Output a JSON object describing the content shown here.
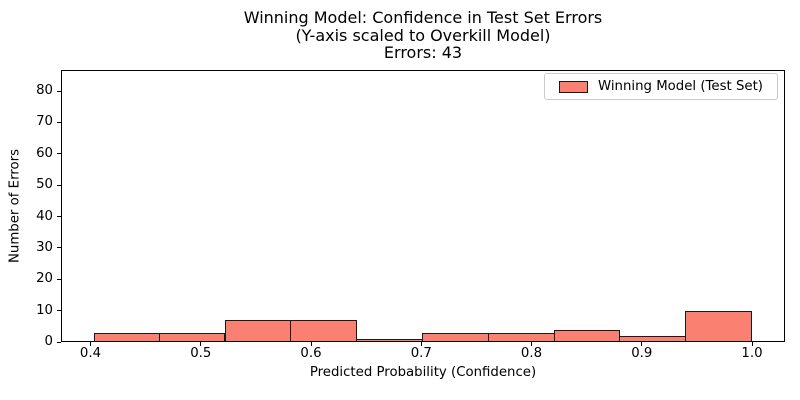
{
  "title": {
    "line1": "Winning Model: Confidence in Test Set Errors",
    "line2": "(Y-axis scaled to Overkill Model)",
    "line3": "Errors: 43"
  },
  "legend": {
    "label": "Winning Model (Test Set)",
    "swatch_color": "#FA8072",
    "swatch_edge_color": "#1a1a1a"
  },
  "chart_data": {
    "type": "bar",
    "subtype": "histogram",
    "title": "Winning Model: Confidence in Test Set Errors",
    "subtitle": "(Y-axis scaled to Overkill Model)",
    "annotation": "Errors: 43",
    "total_errors": 43,
    "xlabel": "Predicted Probability (Confidence)",
    "ylabel": "Number of Errors",
    "bin_edges": [
      0.403,
      0.4627,
      0.5224,
      0.5821,
      0.6418,
      0.7015,
      0.7612,
      0.8209,
      0.8806,
      0.9403,
      1.0
    ],
    "counts": [
      3,
      3,
      7,
      7,
      1,
      3,
      3,
      4,
      2,
      10
    ],
    "xlim": [
      0.3732,
      1.0299
    ],
    "ylim": [
      0,
      86.7
    ],
    "xticks": [
      0.4,
      0.5,
      0.6,
      0.7,
      0.8,
      0.9,
      1.0
    ],
    "xtick_labels": [
      "0.4",
      "0.5",
      "0.6",
      "0.7",
      "0.8",
      "0.9",
      "1.0"
    ],
    "yticks": [
      0,
      10,
      20,
      30,
      40,
      50,
      60,
      70,
      80
    ],
    "ytick_labels": [
      "0",
      "10",
      "20",
      "30",
      "40",
      "50",
      "60",
      "70",
      "80"
    ],
    "bar_color": "#FA8072",
    "bar_edge_color": "#1a1a1a",
    "grid": false,
    "legend_position": "upper right",
    "legend_entries": [
      "Winning Model (Test Set)"
    ]
  }
}
